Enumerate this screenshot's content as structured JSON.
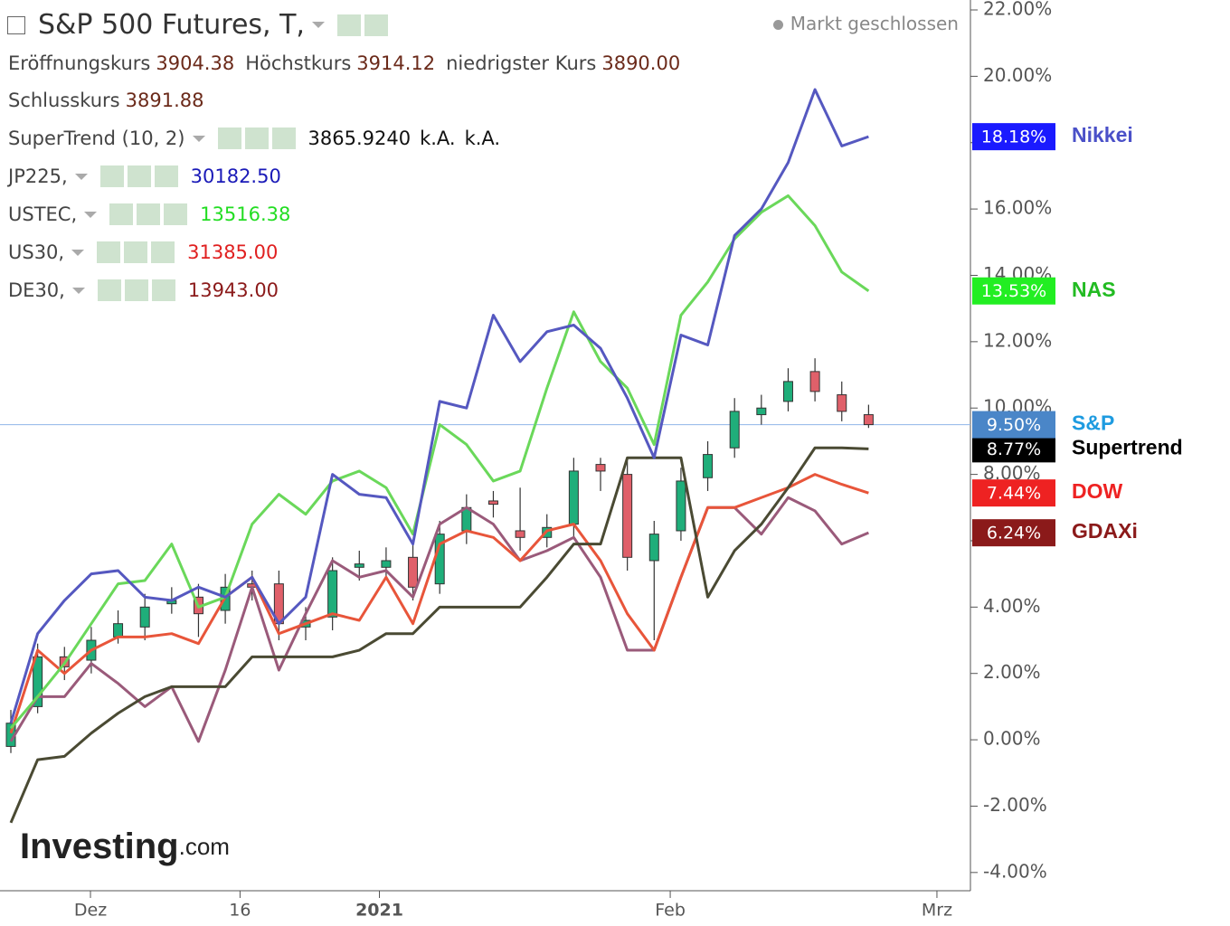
{
  "header": {
    "title": "S&P 500 Futures, T,",
    "status": "Markt geschlossen",
    "ohlc": [
      [
        "Eröffnungskurs",
        "3904.38"
      ],
      [
        "Höchstkurs",
        "3914.12"
      ],
      [
        "niedrigster Kurs",
        "3890.00"
      ],
      [
        "Schlusskurs",
        "3891.88"
      ]
    ],
    "indicators": [
      {
        "name": "SuperTrend (10, 2)",
        "values": [
          "3865.9240",
          "k.A.",
          "k.A."
        ],
        "color": "#111111"
      },
      {
        "name": "JP225,",
        "values": [
          "30182.50"
        ],
        "color": "#1a1ab8"
      },
      {
        "name": "USTEC,",
        "values": [
          "13516.38"
        ],
        "color": "#22dd22"
      },
      {
        "name": "US30,",
        "values": [
          "31385.00"
        ],
        "color": "#e02020"
      },
      {
        "name": "DE30,",
        "values": [
          "13943.00"
        ],
        "color": "#8b1a1a"
      }
    ],
    "watermark": [
      "Investing",
      ".com"
    ]
  },
  "chart_data": {
    "type": "line",
    "x": [
      0,
      2,
      4,
      6,
      8,
      10,
      12,
      14,
      16,
      18,
      20,
      22,
      24,
      26,
      28,
      30,
      32,
      34,
      36,
      38,
      40,
      42,
      44,
      46,
      48,
      50,
      52,
      54,
      56,
      58,
      60,
      62,
      64
    ],
    "xlim": [
      -0.81,
      71.6
    ],
    "xticks": [
      {
        "value": 5.94,
        "label": "Dez"
      },
      {
        "value": 17.1,
        "label": "16"
      },
      {
        "value": 27.5,
        "label": "2021"
      },
      {
        "value": 49.2,
        "label": "Feb"
      },
      {
        "value": 69.1,
        "label": "Mrz"
      }
    ],
    "ylim": [
      -4.55,
      22.3
    ],
    "yticks": [
      {
        "value": -4,
        "label": "-4.00%"
      },
      {
        "value": -2,
        "label": "-2.00%"
      },
      {
        "value": 0,
        "label": "0.00%"
      },
      {
        "value": 2,
        "label": "2.00%"
      },
      {
        "value": 4,
        "label": "4.00%"
      },
      {
        "value": 6,
        "label": "6.00%"
      },
      {
        "value": 8,
        "label": "8.00%"
      },
      {
        "value": 10,
        "label": "10.00%"
      },
      {
        "value": 12,
        "label": "12.00%"
      },
      {
        "value": 14,
        "label": "14.00%"
      },
      {
        "value": 16,
        "label": "16.00%"
      },
      {
        "value": 18,
        "label": "18.00%"
      },
      {
        "value": 20,
        "label": "20.00%"
      },
      {
        "value": 22,
        "label": "22.00%"
      }
    ],
    "series": [
      {
        "name": "Nikkei",
        "color": "#5558c0",
        "box_color": "#1a1aff",
        "label_color": "#4a50c8",
        "value_label": "18.18%",
        "values": [
          0.5,
          3.2,
          4.2,
          5.0,
          5.1,
          4.3,
          4.2,
          4.6,
          4.3,
          4.9,
          3.5,
          4.3,
          8.0,
          7.4,
          7.3,
          5.9,
          10.2,
          10.0,
          12.8,
          11.4,
          12.3,
          12.5,
          11.8,
          10.3,
          8.5,
          12.2,
          11.9,
          15.2,
          16.0,
          17.4,
          19.6,
          17.9,
          18.18
        ]
      },
      {
        "name": "NAS",
        "color": "#6ad85a",
        "box_color": "#22ee22",
        "label_color": "#22bb22",
        "value_label": "13.53%",
        "values": [
          0.35,
          1.3,
          2.3,
          3.5,
          4.7,
          4.8,
          5.9,
          4.0,
          4.3,
          6.5,
          7.4,
          6.8,
          7.8,
          8.1,
          7.6,
          6.2,
          9.5,
          8.9,
          7.8,
          8.1,
          10.6,
          12.9,
          11.4,
          10.6,
          8.9,
          12.8,
          13.8,
          15.1,
          15.9,
          16.4,
          15.5,
          14.1,
          13.53
        ]
      },
      {
        "name": "Supertrend",
        "color": "#4a4a33",
        "box_color": "#000000",
        "label_color": "#000000",
        "value_label": "8.77%",
        "values": [
          -2.5,
          -0.6,
          -0.5,
          0.2,
          0.8,
          1.3,
          1.6,
          1.6,
          1.6,
          2.5,
          2.5,
          2.5,
          2.5,
          2.7,
          3.2,
          3.2,
          4.0,
          4.0,
          4.0,
          4.0,
          4.9,
          5.9,
          5.9,
          8.5,
          8.5,
          8.5,
          4.3,
          5.7,
          6.5,
          7.6,
          8.8,
          8.8,
          8.77
        ]
      },
      {
        "name": "DOW",
        "color": "#e8553a",
        "box_color": "#ee2222",
        "label_color": "#ee2222",
        "value_label": "7.44%",
        "values": [
          0.2,
          2.7,
          2.0,
          2.7,
          3.1,
          3.1,
          3.2,
          2.9,
          4.3,
          4.9,
          3.2,
          3.5,
          3.8,
          3.6,
          4.9,
          3.5,
          5.9,
          6.3,
          6.1,
          5.4,
          6.3,
          6.5,
          5.4,
          3.8,
          2.7,
          4.9,
          7.0,
          7.0,
          7.3,
          7.6,
          8.0,
          7.7,
          7.44
        ]
      },
      {
        "name": "GDAXi",
        "color": "#9a5a7a",
        "box_color": "#8b1a1a",
        "label_color": "#8b1a1a",
        "value_label": "6.24%",
        "values": [
          -0.05,
          1.3,
          1.3,
          2.3,
          1.7,
          1.0,
          1.6,
          -0.05,
          2.1,
          4.6,
          2.1,
          3.8,
          5.4,
          4.9,
          5.1,
          4.3,
          6.5,
          7.0,
          6.5,
          5.4,
          5.7,
          6.1,
          4.9,
          2.7,
          2.7,
          4.9,
          7.0,
          7.0,
          6.2,
          7.3,
          6.9,
          5.9,
          6.24
        ]
      }
    ],
    "candles": {
      "name": "S&P",
      "box_color": "#4a86c8",
      "label_color": "#1e9be0",
      "value_label": "9.50%",
      "last": 9.5,
      "up_color": "#1fae7a",
      "down_color": "#e0606a",
      "open": [
        -0.2,
        1.0,
        2.5,
        2.4,
        3.1,
        3.4,
        4.1,
        4.3,
        3.9,
        4.7,
        4.7,
        3.4,
        3.7,
        5.2,
        5.2,
        5.5,
        4.7,
        6.3,
        7.2,
        6.3,
        6.1,
        6.5,
        8.3,
        8.0,
        5.4,
        6.3,
        7.9,
        8.8,
        9.8,
        10.2,
        11.1,
        10.4,
        9.8
      ],
      "high": [
        0.9,
        2.9,
        2.8,
        3.4,
        3.9,
        4.4,
        4.6,
        4.7,
        5.0,
        5.1,
        5.1,
        4.0,
        5.5,
        5.7,
        5.8,
        5.9,
        6.6,
        7.4,
        7.5,
        7.6,
        6.8,
        8.5,
        8.5,
        8.5,
        6.6,
        8.2,
        9.0,
        10.3,
        10.4,
        11.2,
        11.5,
        10.8,
        10.1
      ],
      "low": [
        -0.4,
        0.8,
        1.8,
        2.0,
        2.9,
        3.0,
        3.8,
        3.1,
        3.5,
        4.2,
        3.0,
        3.0,
        3.3,
        4.8,
        4.9,
        4.2,
        4.4,
        5.9,
        6.7,
        5.7,
        5.8,
        6.1,
        7.5,
        5.1,
        3.0,
        6.0,
        7.5,
        8.5,
        9.5,
        9.9,
        10.2,
        9.6,
        9.4
      ],
      "close": [
        0.5,
        2.5,
        2.2,
        3.0,
        3.5,
        4.0,
        4.2,
        3.8,
        4.6,
        4.6,
        3.5,
        3.6,
        5.1,
        5.3,
        5.4,
        4.6,
        6.2,
        7.0,
        7.1,
        6.1,
        6.4,
        8.1,
        8.1,
        5.5,
        6.2,
        7.8,
        8.6,
        9.9,
        10.0,
        10.8,
        10.5,
        9.9,
        9.5
      ]
    }
  }
}
